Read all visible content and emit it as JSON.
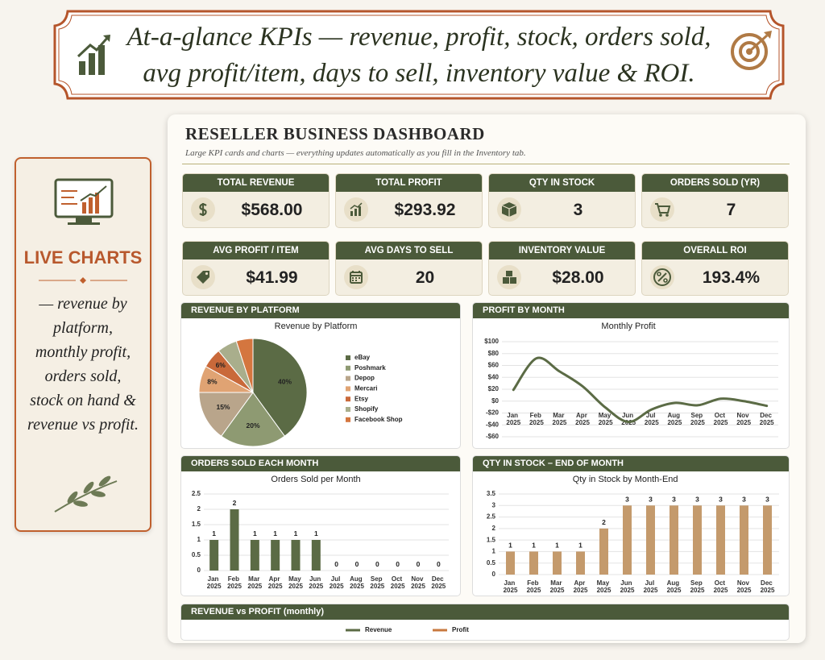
{
  "banner": {
    "text": "At-a-glance KPIs — revenue, profit, stock, orders sold, avg profit/item, days to sell, inventory value & ROI."
  },
  "sidebar": {
    "title": "LIVE CHARTS",
    "text": "— revenue by platform, monthly profit, orders sold, stock on hand & revenue vs profit."
  },
  "dashboard": {
    "title": "RESELLER BUSINESS DASHBOARD",
    "subtitle": "Large KPI cards and charts — everything updates automatically as you fill in the Inventory tab.",
    "kpis": [
      {
        "label": "TOTAL REVENUE",
        "value": "$568.00"
      },
      {
        "label": "TOTAL PROFIT",
        "value": "$293.92"
      },
      {
        "label": "QTY IN STOCK",
        "value": "3"
      },
      {
        "label": "ORDERS SOLD (YR)",
        "value": "7"
      },
      {
        "label": "AVG PROFIT / ITEM",
        "value": "$41.99"
      },
      {
        "label": "AVG DAYS TO SELL",
        "value": "20"
      },
      {
        "label": "INVENTORY VALUE",
        "value": "$28.00"
      },
      {
        "label": "OVERALL ROI",
        "value": "193.4%"
      }
    ]
  },
  "chart_data": [
    {
      "type": "pie",
      "header": "REVENUE BY PLATFORM",
      "title": "Revenue by Platform",
      "categories": [
        "eBay",
        "Poshmark",
        "Depop",
        "Mercari",
        "Etsy",
        "Shopify",
        "Facebook Shop"
      ],
      "values": [
        40,
        20,
        15,
        8,
        6,
        6,
        5
      ],
      "value_labels": [
        "40%",
        "20%",
        "15%",
        "8%",
        "6%",
        null,
        null
      ],
      "colors": [
        "#5b6b45",
        "#8e9a72",
        "#b9a58b",
        "#e0a373",
        "#c9693a",
        "#a9ae8c",
        "#d4763f"
      ]
    },
    {
      "type": "line",
      "header": "PROFIT BY MONTH",
      "title": "Monthly Profit",
      "categories": [
        "Jan 2025",
        "Feb 2025",
        "Mar 2025",
        "Apr 2025",
        "May 2025",
        "Jun 2025",
        "Jul 2025",
        "Aug 2025",
        "Sep 2025",
        "Oct 2025",
        "Nov 2025",
        "Dec 2025"
      ],
      "values": [
        19,
        72,
        50,
        25,
        -11,
        -35,
        -14,
        -3,
        -7,
        4,
        0,
        -8
      ],
      "color": "#5b6b45",
      "ylim": [
        -60,
        100
      ],
      "yticks": [
        {
          "value": -60,
          "label": "-$60"
        },
        {
          "value": -40,
          "label": "-$40"
        },
        {
          "value": -20,
          "label": "-$20"
        },
        {
          "value": 0,
          "label": "$0"
        },
        {
          "value": 20,
          "label": "$20"
        },
        {
          "value": 40,
          "label": "$40"
        },
        {
          "value": 60,
          "label": "$60"
        },
        {
          "value": 80,
          "label": "$80"
        },
        {
          "value": 100,
          "label": "$100"
        }
      ],
      "grid": true
    },
    {
      "type": "bar",
      "header": "ORDERS SOLD EACH MONTH",
      "title": "Orders Sold per Month",
      "categories": [
        "Jan 2025",
        "Feb 2025",
        "Mar 2025",
        "Apr 2025",
        "May 2025",
        "Jun 2025",
        "Jul 2025",
        "Aug 2025",
        "Sep 2025",
        "Oct 2025",
        "Nov 2025",
        "Dec 2025"
      ],
      "values": [
        1,
        2,
        1,
        1,
        1,
        1,
        0,
        0,
        0,
        0,
        0,
        0
      ],
      "color": "#5b6b45",
      "ylim": [
        0,
        2.5
      ],
      "yticks": [
        0,
        0.5,
        1,
        1.5,
        2,
        2.5
      ],
      "grid": true
    },
    {
      "type": "bar",
      "header": "QTY IN STOCK – END OF MONTH",
      "title": "Qty in Stock by Month-End",
      "categories": [
        "Jan 2025",
        "Feb 2025",
        "Mar 2025",
        "Apr 2025",
        "May 2025",
        "Jun 2025",
        "Jul 2025",
        "Aug 2025",
        "Sep 2025",
        "Oct 2025",
        "Nov 2025",
        "Dec 2025"
      ],
      "values": [
        1,
        1,
        1,
        1,
        2,
        3,
        3,
        3,
        3,
        3,
        3,
        3
      ],
      "color": "#c49a6c",
      "ylim": [
        0,
        3.5
      ],
      "yticks": [
        0,
        0.5,
        1,
        1.5,
        2,
        2.5,
        3,
        3.5
      ],
      "grid": true
    },
    {
      "type": "line",
      "header": "REVENUE vs PROFIT (monthly)",
      "series": [
        {
          "name": "Revenue",
          "color": "#5b6b45"
        },
        {
          "name": "Profit",
          "color": "#c8793f"
        }
      ]
    }
  ]
}
